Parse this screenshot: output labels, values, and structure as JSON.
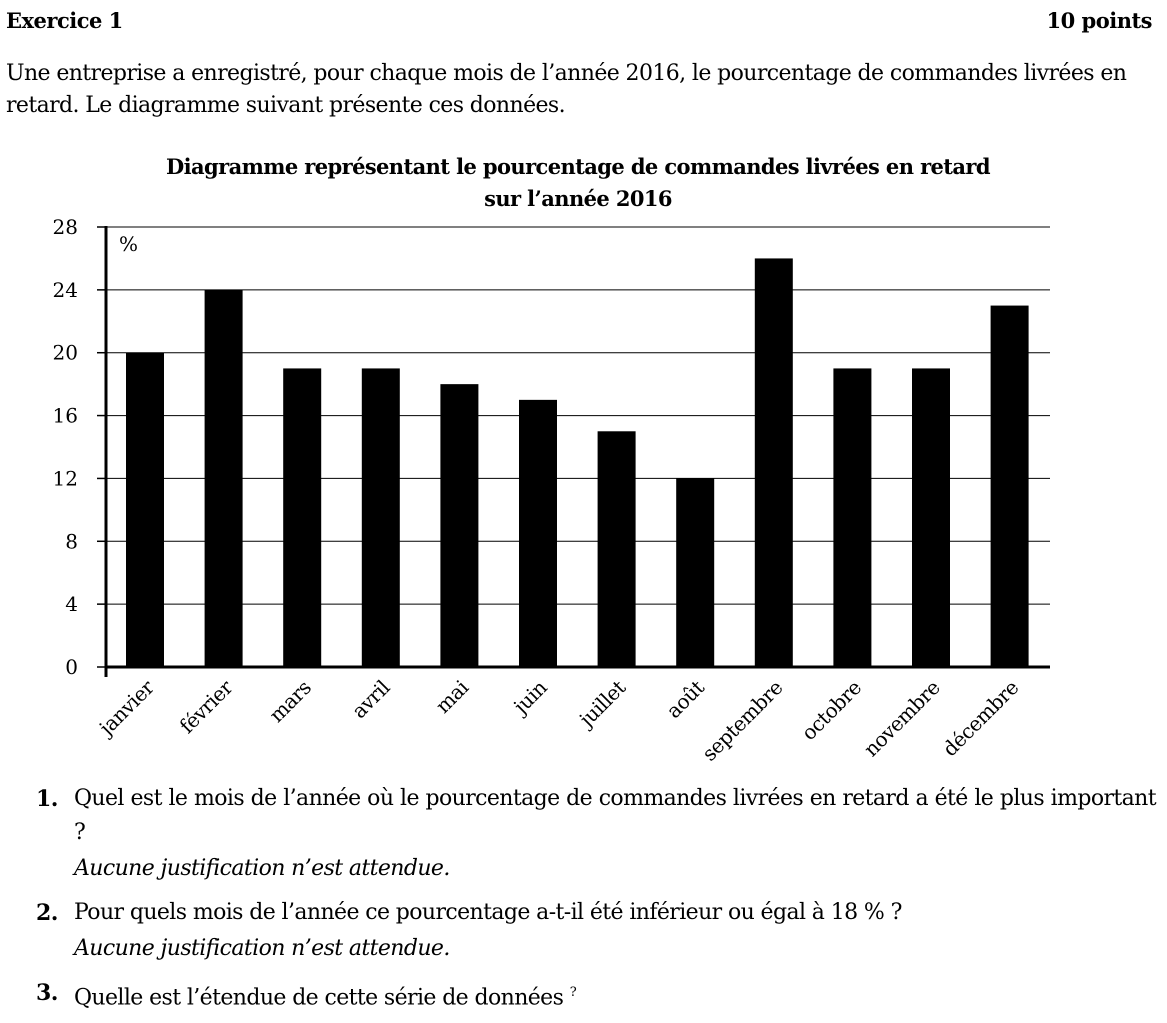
{
  "exercise": {
    "title": "Exercice 1",
    "points": "10 points",
    "intro": "Une entreprise a enregistré, pour chaque mois de l’année 2016, le pourcentage de commandes livrées en retard. Le diagramme suivant présente ces données."
  },
  "chart_data": {
    "type": "bar",
    "title_line1": "Diagramme représentant le pourcentage de commandes livrées en retard",
    "title_line2": "sur l’année 2016",
    "ylabel": "%",
    "xlabel": "",
    "categories": [
      "janvier",
      "février",
      "mars",
      "avril",
      "mai",
      "juin",
      "juillet",
      "août",
      "septembre",
      "octobre",
      "novembre",
      "décembre"
    ],
    "values": [
      20,
      24,
      19,
      19,
      18,
      17,
      15,
      12,
      26,
      19,
      19,
      23
    ],
    "ylim": [
      0,
      28
    ],
    "yticks": [
      0,
      4,
      8,
      12,
      16,
      20,
      24,
      28
    ],
    "grid": true,
    "bar_color": "#000000"
  },
  "questions": [
    {
      "num": "1.",
      "text": "Quel est le mois de l’année où le pourcentage de commandes livrées en retard a été le plus important ?",
      "note": "Aucune justification n’est attendue."
    },
    {
      "num": "2.",
      "text": "Pour quels mois de l’année ce pourcentage a-t-il été inférieur ou égal à 18 % ?",
      "note": "Aucune justification n’est attendue."
    },
    {
      "num": "3.",
      "text": "Quelle est l’étendue de cette série de données",
      "sup": "?",
      "note": ""
    }
  ]
}
